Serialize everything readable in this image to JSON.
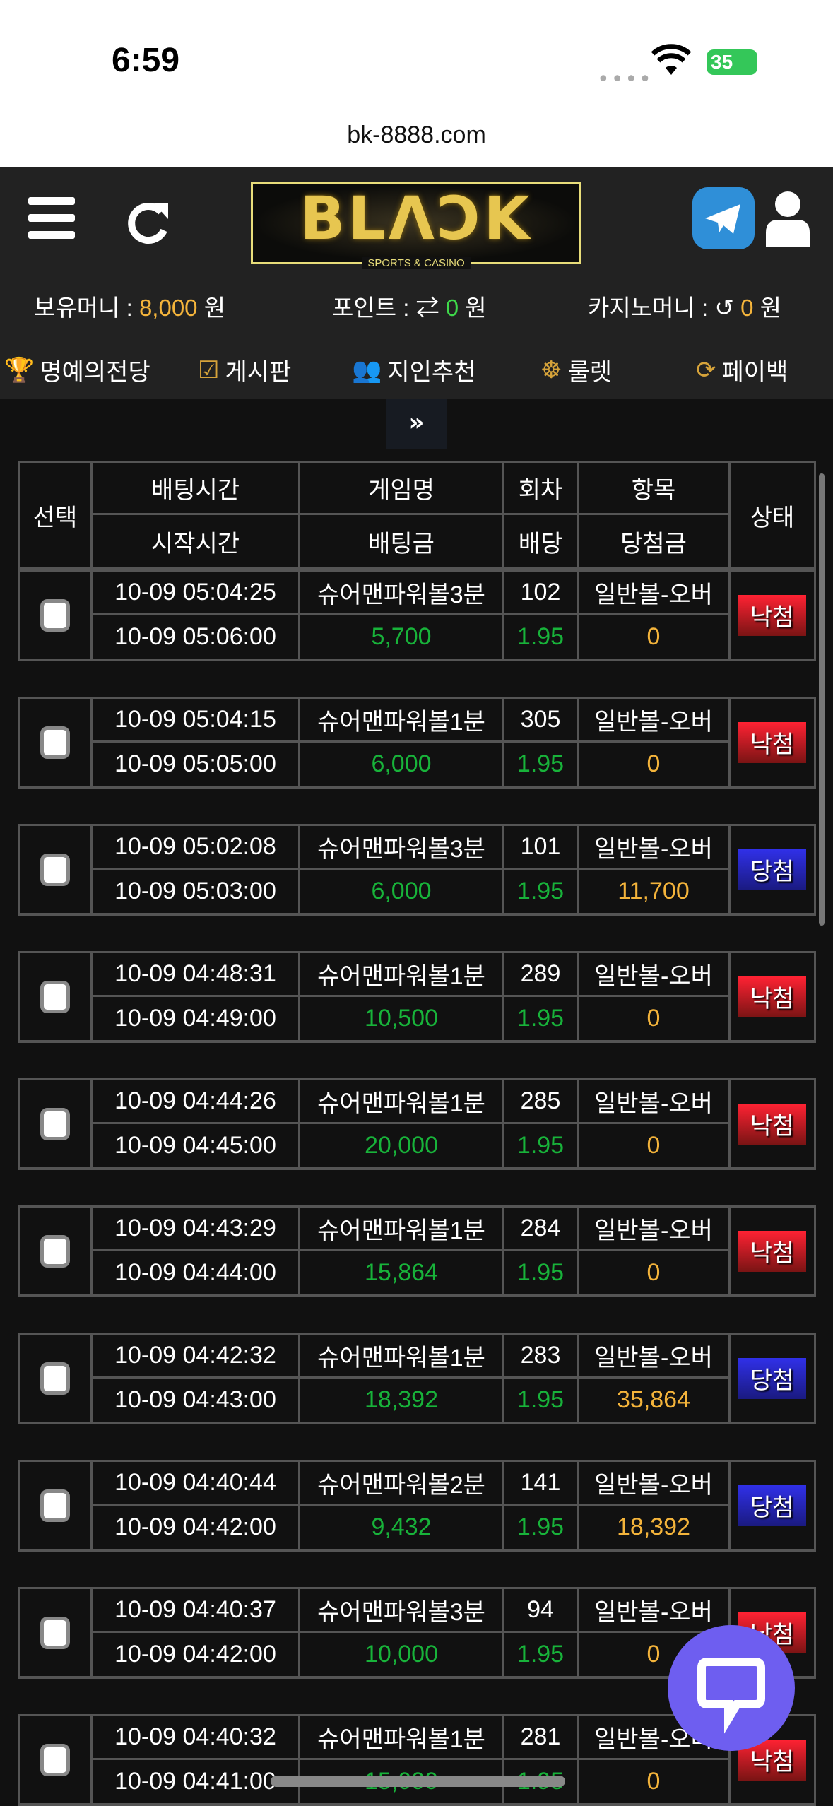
{
  "status_bar": {
    "time": "6:59",
    "battery": "35"
  },
  "browser": {
    "url": "bk-8888.com"
  },
  "header": {
    "logo_text": "BLACK",
    "logo_sub": "SPORTS & CASINO",
    "balance": {
      "label": "보유머니 : ",
      "value": "8,000",
      "unit": " 원"
    },
    "points": {
      "label": "포인트 : ",
      "value": "0",
      "unit": " 원"
    },
    "casino": {
      "label": "카지노머니 : ",
      "value": "0",
      "unit": " 원"
    }
  },
  "nav": [
    {
      "label": "명예의전당",
      "icon": "trophy-icon"
    },
    {
      "label": "게시판",
      "icon": "checkbox-icon"
    },
    {
      "label": "지인추천",
      "icon": "people-icon"
    },
    {
      "label": "룰렛",
      "icon": "roulette-icon"
    },
    {
      "label": "페이백",
      "icon": "payback-icon"
    }
  ],
  "toggle_label": "»",
  "table": {
    "headers": {
      "select": "선택",
      "bet_time": "배팅시간",
      "start_time": "시작시간",
      "game": "게임명",
      "bet_amount": "배팅금",
      "round": "회차",
      "odds": "배당",
      "item": "항목",
      "payout": "당첨금",
      "status": "상태"
    },
    "rows": [
      {
        "bet_time": "10-09 05:04:25",
        "start_time": "10-09 05:06:00",
        "game": "슈어맨파워볼3분",
        "bet_amount": "5,700",
        "round": "102",
        "odds": "1.95",
        "item": "일반볼-오버",
        "payout": "0",
        "status": "낙첨"
      },
      {
        "bet_time": "10-09 05:04:15",
        "start_time": "10-09 05:05:00",
        "game": "슈어맨파워볼1분",
        "bet_amount": "6,000",
        "round": "305",
        "odds": "1.95",
        "item": "일반볼-오버",
        "payout": "0",
        "status": "낙첨"
      },
      {
        "bet_time": "10-09 05:02:08",
        "start_time": "10-09 05:03:00",
        "game": "슈어맨파워볼3분",
        "bet_amount": "6,000",
        "round": "101",
        "odds": "1.95",
        "item": "일반볼-오버",
        "payout": "11,700",
        "status": "당첨"
      },
      {
        "bet_time": "10-09 04:48:31",
        "start_time": "10-09 04:49:00",
        "game": "슈어맨파워볼1분",
        "bet_amount": "10,500",
        "round": "289",
        "odds": "1.95",
        "item": "일반볼-오버",
        "payout": "0",
        "status": "낙첨"
      },
      {
        "bet_time": "10-09 04:44:26",
        "start_time": "10-09 04:45:00",
        "game": "슈어맨파워볼1분",
        "bet_amount": "20,000",
        "round": "285",
        "odds": "1.95",
        "item": "일반볼-오버",
        "payout": "0",
        "status": "낙첨"
      },
      {
        "bet_time": "10-09 04:43:29",
        "start_time": "10-09 04:44:00",
        "game": "슈어맨파워볼1분",
        "bet_amount": "15,864",
        "round": "284",
        "odds": "1.95",
        "item": "일반볼-오버",
        "payout": "0",
        "status": "낙첨"
      },
      {
        "bet_time": "10-09 04:42:32",
        "start_time": "10-09 04:43:00",
        "game": "슈어맨파워볼1분",
        "bet_amount": "18,392",
        "round": "283",
        "odds": "1.95",
        "item": "일반볼-오버",
        "payout": "35,864",
        "status": "당첨"
      },
      {
        "bet_time": "10-09 04:40:44",
        "start_time": "10-09 04:42:00",
        "game": "슈어맨파워볼2분",
        "bet_amount": "9,432",
        "round": "141",
        "odds": "1.95",
        "item": "일반볼-오버",
        "payout": "18,392",
        "status": "당첨"
      },
      {
        "bet_time": "10-09 04:40:37",
        "start_time": "10-09 04:42:00",
        "game": "슈어맨파워볼3분",
        "bet_amount": "10,000",
        "round": "94",
        "odds": "1.95",
        "item": "일반볼-오버",
        "payout": "0",
        "status": "낙첨"
      },
      {
        "bet_time": "10-09 04:40:32",
        "start_time": "10-09 04:41:00",
        "game": "슈어맨파워볼1분",
        "bet_amount": "15,000",
        "round": "281",
        "odds": "1.95",
        "item": "일반볼-오버",
        "payout": "0",
        "status": "낙첨"
      }
    ]
  },
  "colors": {
    "lose": "#e82020",
    "win": "#2a2ad0",
    "amount": "#18b33a",
    "payout": "#f4b43b",
    "chat": "#6e5ef0"
  }
}
